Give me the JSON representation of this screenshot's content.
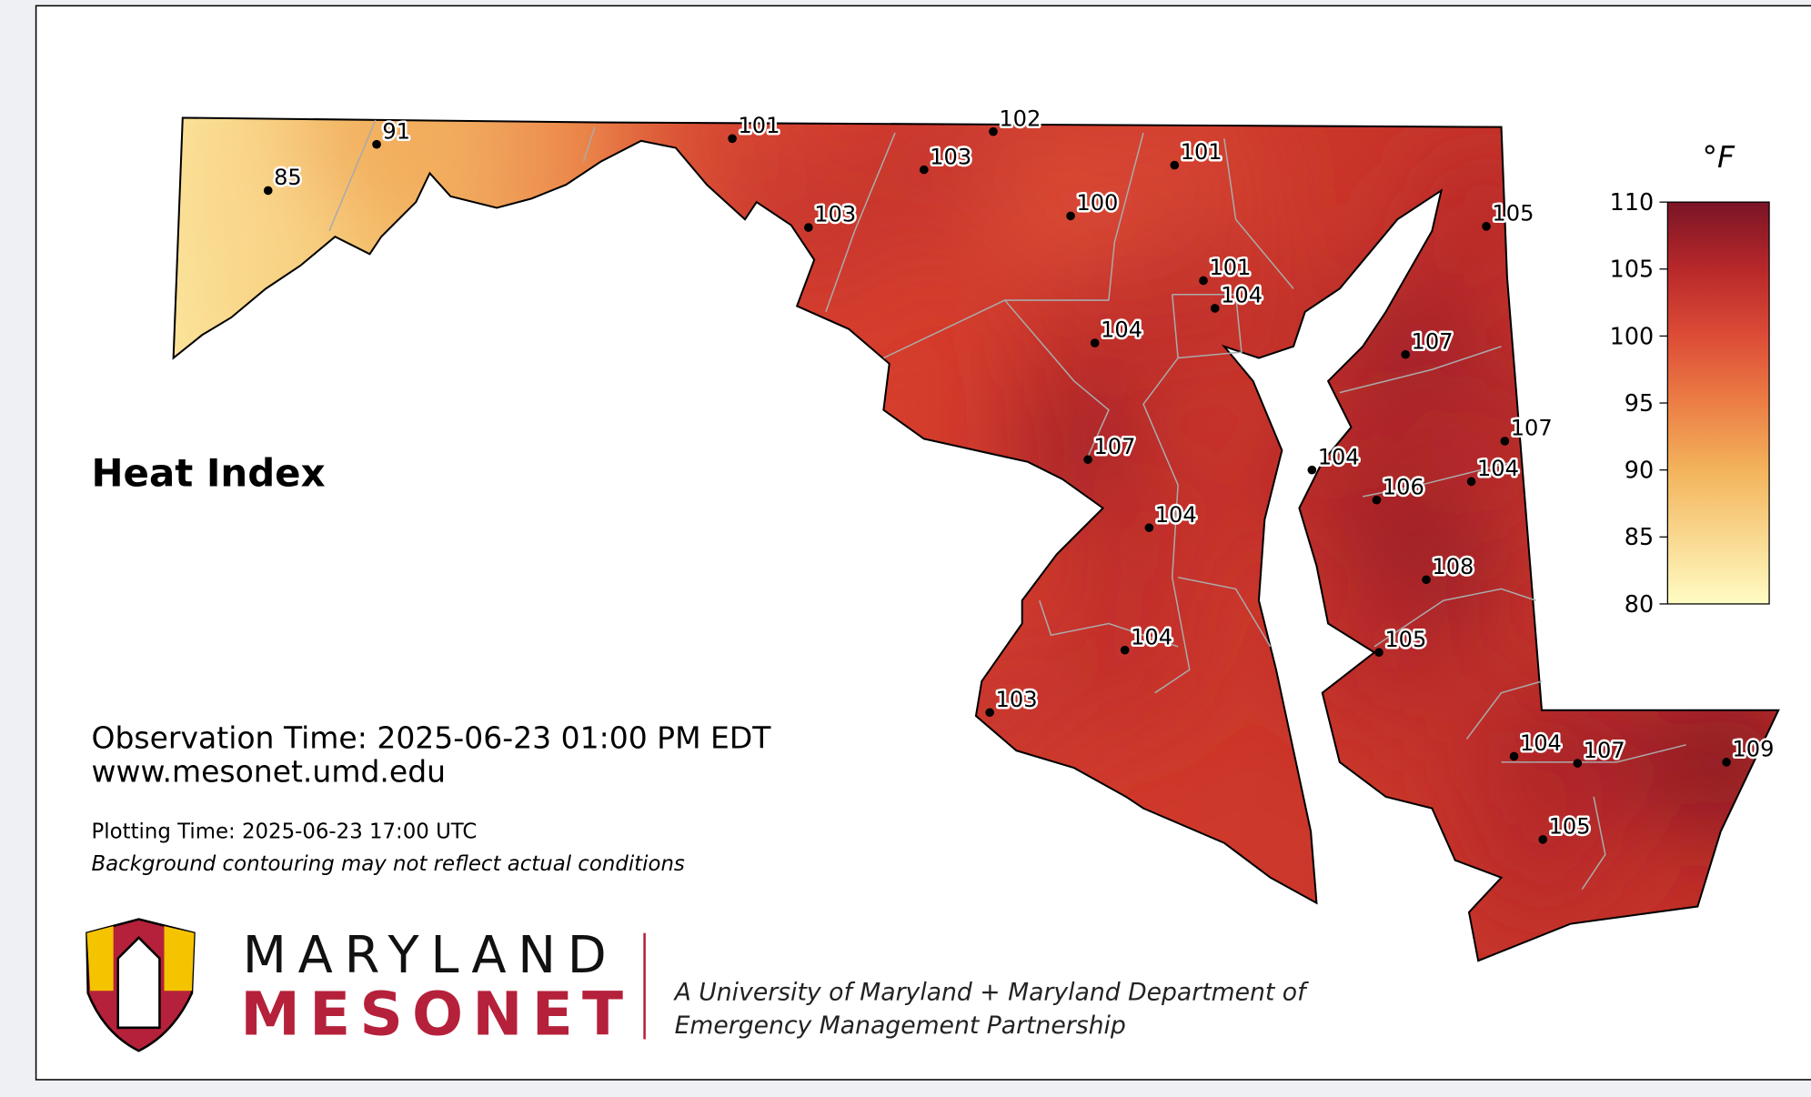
{
  "title": "Heat Index",
  "observation_time": "Observation Time: 2025-06-23 01:00 PM EDT",
  "website": "www.mesonet.umd.edu",
  "plotting_time": "Plotting Time: 2025-06-23 17:00 UTC",
  "disclaimer": "Background contouring may not reflect actual conditions",
  "colorbar": {
    "label": "°F",
    "range": [
      80,
      110
    ],
    "ticks": [
      80,
      85,
      90,
      95,
      100,
      105,
      110
    ]
  },
  "stations": [
    {
      "value": 85
    },
    {
      "value": 91
    },
    {
      "value": 101
    },
    {
      "value": 102
    },
    {
      "value": 103
    },
    {
      "value": 103
    },
    {
      "value": 100
    },
    {
      "value": 101
    },
    {
      "value": 101
    },
    {
      "value": 104
    },
    {
      "value": 104
    },
    {
      "value": 105
    },
    {
      "value": 107
    },
    {
      "value": 107
    },
    {
      "value": 104
    },
    {
      "value": 104
    },
    {
      "value": 106
    },
    {
      "value": 107
    },
    {
      "value": 104
    },
    {
      "value": 108
    },
    {
      "value": 105
    },
    {
      "value": 104
    },
    {
      "value": 103
    },
    {
      "value": 104
    },
    {
      "value": 107
    },
    {
      "value": 109
    },
    {
      "value": 105
    }
  ],
  "logo": {
    "line1": "MARYLAND",
    "line2": "MESONET",
    "tagline1": "A University of Maryland + Maryland Department of",
    "tagline2": "Emergency Management Partnership"
  }
}
